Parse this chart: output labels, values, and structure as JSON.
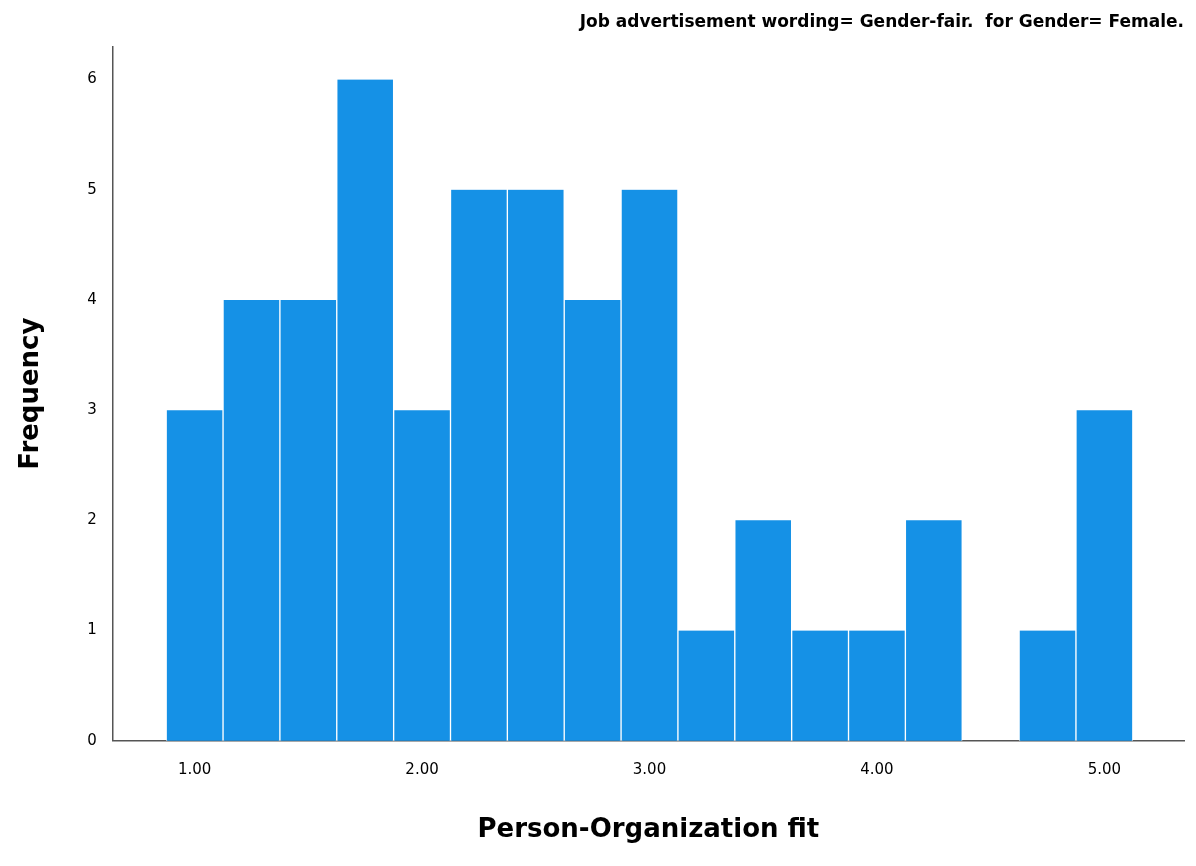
{
  "chart_data": {
    "type": "histogram",
    "title": "Job advertisement wording= Gender-fair.  for Gender= Female.",
    "xlabel": "Person-Organization fit",
    "ylabel": "Frequency",
    "bins": [
      0.875,
      1.125,
      1.375,
      1.625,
      1.875,
      2.125,
      2.375,
      2.625,
      2.875,
      3.125,
      3.375,
      3.625,
      3.875,
      4.125,
      4.375,
      4.625,
      4.875,
      5.125
    ],
    "values": [
      3,
      4,
      4,
      6,
      3,
      5,
      5,
      4,
      5,
      1,
      2,
      1,
      1,
      2,
      0,
      1,
      3
    ],
    "color": "#1591e6",
    "xlim": [
      0.64,
      5.35
    ],
    "xticks": [
      {
        "value": 1,
        "label": "1.00"
      },
      {
        "value": 2,
        "label": "2.00"
      },
      {
        "value": 3,
        "label": "3.00"
      },
      {
        "value": 4,
        "label": "4.00"
      },
      {
        "value": 5,
        "label": "5.00"
      }
    ],
    "ylim": [
      0,
      6.3
    ],
    "yticks": [
      0,
      1,
      2,
      3,
      4,
      5,
      6
    ],
    "grid": false,
    "legend": false
  }
}
